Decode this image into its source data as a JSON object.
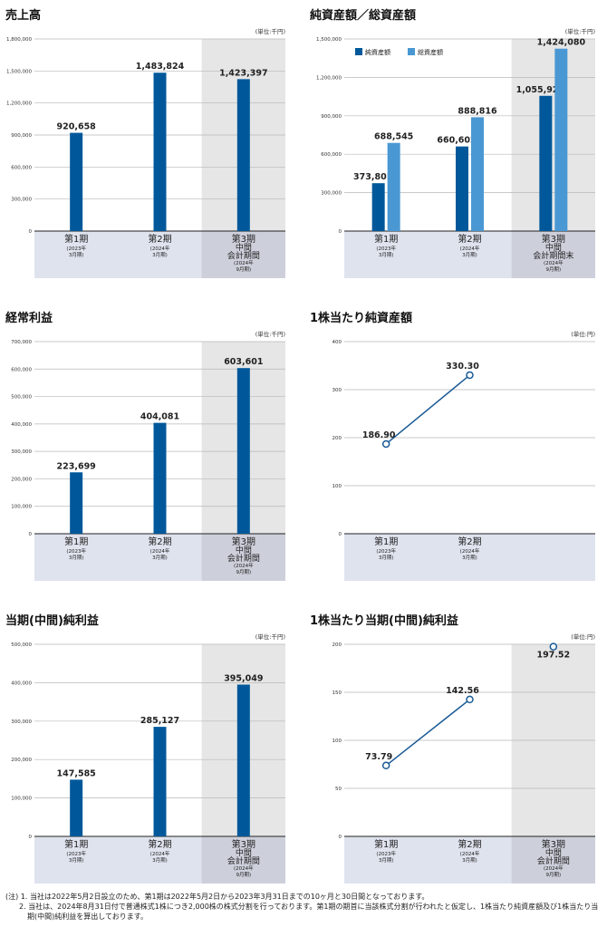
{
  "colors": {
    "dark": "#00589a",
    "light": "#4a98d3",
    "shade": "#e6e6e6",
    "band": "#dfe3ee",
    "bandShade": "#cdd0db",
    "line": "#1a5a96"
  },
  "chart_data": [
    {
      "type": "bar",
      "title": "売上高",
      "unit": "(単位:千円)",
      "ylim": [
        0,
        1800000
      ],
      "yticks": [
        "0",
        "300,000",
        "600,000",
        "900,000",
        "1,200,000",
        "1,500,000",
        "1,800,000"
      ],
      "shaded_last": true,
      "categories": [
        {
          "main": "第1期",
          "sub": [
            "(2023年",
            "3月期)"
          ]
        },
        {
          "main": "第2期",
          "sub": [
            "(2024年",
            "3月期)"
          ]
        },
        {
          "main": "第3期",
          "sub": [
            "中間",
            "会計期間",
            "(2024年",
            "9月期)"
          ]
        }
      ],
      "series": [
        {
          "name": "売上高",
          "color": "dark",
          "values": [
            920658,
            1483824,
            1423397
          ],
          "labels": [
            "920,658",
            "1,483,824",
            "1,423,397"
          ]
        }
      ]
    },
    {
      "type": "bar",
      "title": "純資産額／総資産額",
      "unit": "(単位:千円)",
      "ylim": [
        0,
        1500000
      ],
      "yticks": [
        "0",
        "300,000",
        "600,000",
        "900,000",
        "1,200,000",
        "1,500,000"
      ],
      "shaded_last": true,
      "legend": [
        "純資産額",
        "総資産額"
      ],
      "categories": [
        {
          "main": "第1期",
          "sub": [
            "(2023年",
            "3月期)"
          ]
        },
        {
          "main": "第2期",
          "sub": [
            "(2024年",
            "3月期)"
          ]
        },
        {
          "main": "第3期",
          "sub": [
            "中間",
            "会計期間末",
            "(2024年",
            "9月期)"
          ]
        }
      ],
      "series": [
        {
          "name": "純資産額",
          "color": "dark",
          "values": [
            373801,
            660602,
            1055929
          ],
          "labels": [
            "373,801",
            "660,602",
            "1,055,929"
          ]
        },
        {
          "name": "総資産額",
          "color": "light",
          "values": [
            688545,
            888816,
            1424080
          ],
          "labels": [
            "688,545",
            "888,816",
            "1,424,080"
          ]
        }
      ]
    },
    {
      "type": "bar",
      "title": "経常利益",
      "unit": "(単位:千円)",
      "ylim": [
        0,
        700000
      ],
      "yticks": [
        "0",
        "100,000",
        "200,000",
        "300,000",
        "400,000",
        "500,000",
        "600,000",
        "700,000"
      ],
      "shaded_last": true,
      "categories": [
        {
          "main": "第1期",
          "sub": [
            "(2023年",
            "3月期)"
          ]
        },
        {
          "main": "第2期",
          "sub": [
            "(2024年",
            "3月期)"
          ]
        },
        {
          "main": "第3期",
          "sub": [
            "中間",
            "会計期間",
            "(2024年",
            "9月期)"
          ]
        }
      ],
      "series": [
        {
          "name": "経常利益",
          "color": "dark",
          "values": [
            223699,
            404081,
            603601
          ],
          "labels": [
            "223,699",
            "404,081",
            "603,601"
          ]
        }
      ]
    },
    {
      "type": "line",
      "title": "1株当たり純資産額",
      "unit": "(単位:円)",
      "ylim": [
        0,
        400
      ],
      "yticks": [
        "0",
        "100",
        "200",
        "300",
        "400"
      ],
      "shaded_last": false,
      "categories": [
        {
          "main": "第1期",
          "sub": [
            "(2023年",
            "3月期)"
          ]
        },
        {
          "main": "第2期",
          "sub": [
            "(2024年",
            "3月期)"
          ]
        }
      ],
      "series": [
        {
          "name": "1株当たり純資産額",
          "values": [
            186.9,
            330.3
          ],
          "labels": [
            "186.90",
            "330.30"
          ],
          "connect": [
            true,
            true
          ]
        }
      ]
    },
    {
      "type": "bar",
      "title": "当期(中間)純利益",
      "unit": "(単位:千円)",
      "ylim": [
        0,
        500000
      ],
      "yticks": [
        "0",
        "100,000",
        "200,000",
        "300,000",
        "400,000",
        "500,000"
      ],
      "shaded_last": true,
      "categories": [
        {
          "main": "第1期",
          "sub": [
            "(2023年",
            "3月期)"
          ]
        },
        {
          "main": "第2期",
          "sub": [
            "(2024年",
            "3月期)"
          ]
        },
        {
          "main": "第3期",
          "sub": [
            "中間",
            "会計期間",
            "(2024年",
            "9月期)"
          ]
        }
      ],
      "series": [
        {
          "name": "当期(中間)純利益",
          "color": "dark",
          "values": [
            147585,
            285127,
            395049
          ],
          "labels": [
            "147,585",
            "285,127",
            "395,049"
          ]
        }
      ]
    },
    {
      "type": "line",
      "title": "1株当たり当期(中間)純利益",
      "unit": "(単位:円)",
      "ylim": [
        0,
        200
      ],
      "yticks": [
        "0",
        "50",
        "100",
        "150",
        "200"
      ],
      "shaded_last": true,
      "categories": [
        {
          "main": "第1期",
          "sub": [
            "(2023年",
            "3月期)"
          ]
        },
        {
          "main": "第2期",
          "sub": [
            "(2024年",
            "3月期)"
          ]
        },
        {
          "main": "第3期",
          "sub": [
            "中間",
            "会計期間",
            "(2024年",
            "9月期)"
          ]
        }
      ],
      "series": [
        {
          "name": "1株当たり当期(中間)純利益",
          "values": [
            73.79,
            142.56,
            197.52
          ],
          "labels": [
            "73.79",
            "142.56",
            "197.52"
          ],
          "connect": [
            true,
            true,
            false
          ]
        }
      ]
    }
  ],
  "notes": {
    "prefix": "(注) 1. 当社は2022年5月2日設立のため、第1期は2022年5月2日から2023年3月31日までの10ヶ月と30日間となっております。",
    "note2": "2. 当社は、2024年8月31日付で普通株式1株につき2,000株の株式分割を行っております。第1期の期首に当該株式分割が行われたと仮定し、1株当たり純資産額及び1株当たり当期(中間)純利益を算出しております。"
  }
}
